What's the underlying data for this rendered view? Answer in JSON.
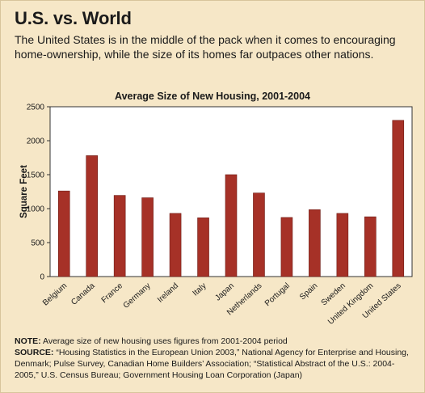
{
  "headline": "U.S. vs. World",
  "subhead": "The United States is in the middle of the pack when it comes to encouraging home-ownership, while the size of its homes far outpaces other nations.",
  "note": {
    "label": "NOTE:",
    "text": " Average size of new housing uses figures from 2001-2004 period"
  },
  "source": {
    "label": "SOURCE:",
    "text": " “Housing Statistics in the European Union 2003,” National Agency for Enterprise and Housing, Denmark; Pulse Survey, Canadian Home Builders’ Association; “Statistical Abstract of the U.S.: 2004-2005,” U.S. Census Bureau; Government Housing Loan Corporation (Japan)"
  },
  "colors": {
    "background": "#f6e7c7",
    "plot_background": "#ffffff",
    "bar": "#a63127",
    "bar_edge": "#6e1c15"
  },
  "chart_data": {
    "type": "bar",
    "title": "Average Size of New Housing, 2001-2004",
    "xlabel": "",
    "ylabel": "Square Feet",
    "ylim": [
      0,
      2500
    ],
    "yticks": [
      0,
      500,
      1000,
      1500,
      2000,
      2500
    ],
    "grid": false,
    "legend": "none",
    "categories": [
      "Belgium",
      "Canada",
      "France",
      "Germany",
      "Ireland",
      "Italy",
      "Japan",
      "Netherlands",
      "Portugal",
      "Spain",
      "Sweden",
      "United Kingdom",
      "United States"
    ],
    "values": [
      1260,
      1780,
      1195,
      1160,
      930,
      865,
      1500,
      1230,
      870,
      985,
      930,
      880,
      2300
    ]
  }
}
